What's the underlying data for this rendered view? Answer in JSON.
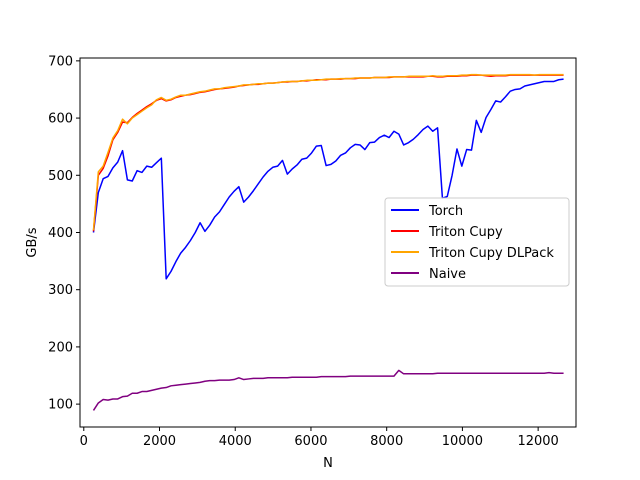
{
  "chart_data": {
    "type": "line",
    "title": "",
    "xlabel": "N",
    "ylabel": "GB/s",
    "xlim": [
      -100,
      13000
    ],
    "ylim": [
      60,
      705
    ],
    "xticks": [
      0,
      2000,
      4000,
      6000,
      8000,
      10000,
      12000
    ],
    "yticks": [
      100,
      200,
      300,
      400,
      500,
      600,
      700
    ],
    "xtick_labels": [
      "0",
      "2000",
      "4000",
      "6000",
      "8000",
      "10000",
      "12000"
    ],
    "ytick_labels": [
      "100",
      "200",
      "300",
      "400",
      "500",
      "600",
      "700"
    ],
    "grid": false,
    "legend_position": "center-right",
    "series": [
      {
        "name": "Torch",
        "color": "#0000ff",
        "x": [
          256,
          384,
          512,
          640,
          768,
          896,
          1024,
          1152,
          1280,
          1408,
          1536,
          1664,
          1792,
          1920,
          2048,
          2176,
          2304,
          2432,
          2560,
          2688,
          2816,
          2944,
          3072,
          3200,
          3328,
          3456,
          3584,
          3712,
          3840,
          3968,
          4096,
          4224,
          4352,
          4480,
          4608,
          4736,
          4864,
          4992,
          5120,
          5248,
          5376,
          5504,
          5632,
          5760,
          5888,
          6016,
          6144,
          6272,
          6400,
          6528,
          6656,
          6784,
          6912,
          7040,
          7168,
          7296,
          7424,
          7552,
          7680,
          7808,
          7936,
          8064,
          8192,
          8320,
          8448,
          8576,
          8704,
          8832,
          8960,
          9088,
          9216,
          9344,
          9472,
          9600,
          9728,
          9856,
          9984,
          10112,
          10240,
          10368,
          10496,
          10624,
          10752,
          10880,
          11008,
          11136,
          11264,
          11392,
          11520,
          11648,
          11776,
          11904,
          12032,
          12160,
          12288,
          12416,
          12544,
          12672
        ],
        "y": [
          400,
          470,
          494,
          498,
          513,
          523,
          543,
          492,
          490,
          508,
          505,
          516,
          514,
          522,
          530,
          319,
          332,
          349,
          364,
          374,
          386,
          400,
          417,
          402,
          413,
          427,
          436,
          449,
          462,
          472,
          480,
          453,
          462,
          473,
          485,
          497,
          507,
          514,
          516,
          526,
          502,
          511,
          518,
          528,
          530,
          539,
          551,
          552,
          517,
          519,
          525,
          535,
          539,
          548,
          554,
          553,
          545,
          557,
          558,
          566,
          570,
          566,
          577,
          572,
          553,
          557,
          563,
          571,
          580,
          586,
          577,
          583,
          460,
          463,
          500,
          546,
          516,
          545,
          544,
          596,
          575,
          601,
          615,
          630,
          628,
          637,
          647,
          650,
          651,
          656,
          658,
          660,
          662,
          664,
          664,
          664,
          667,
          668
        ]
      },
      {
        "name": "Triton Cupy",
        "color": "#ff0000",
        "x": [
          256,
          384,
          512,
          640,
          768,
          896,
          1024,
          1152,
          1280,
          1408,
          1536,
          1664,
          1792,
          1920,
          2048,
          2176,
          2304,
          2432,
          2560,
          2688,
          2816,
          2944,
          3072,
          3200,
          3328,
          3456,
          3584,
          3712,
          3840,
          3968,
          4096,
          4224,
          4352,
          4480,
          4608,
          4736,
          4864,
          4992,
          5120,
          5248,
          5376,
          5504,
          5632,
          5760,
          5888,
          6016,
          6144,
          6272,
          6400,
          6528,
          6656,
          6784,
          6912,
          7040,
          7168,
          7296,
          7424,
          7552,
          7680,
          7808,
          7936,
          8064,
          8192,
          8320,
          8448,
          8576,
          8704,
          8832,
          8960,
          9088,
          9216,
          9344,
          9472,
          9600,
          9728,
          9856,
          9984,
          10112,
          10240,
          10368,
          10496,
          10624,
          10752,
          10880,
          11008,
          11136,
          11264,
          11392,
          11520,
          11648,
          11776,
          11904,
          12032,
          12160,
          12288,
          12416,
          12544,
          12672
        ],
        "y": [
          402,
          500,
          512,
          534,
          562,
          575,
          593,
          592,
          601,
          608,
          614,
          620,
          625,
          631,
          634,
          630,
          632,
          636,
          638,
          640,
          641,
          643,
          645,
          646,
          648,
          650,
          651,
          652,
          653,
          654,
          656,
          657,
          658,
          659,
          659,
          660,
          661,
          661,
          662,
          663,
          663,
          664,
          664,
          665,
          665,
          666,
          667,
          667,
          667,
          668,
          668,
          668,
          669,
          669,
          669,
          670,
          670,
          670,
          671,
          671,
          671,
          671,
          672,
          672,
          672,
          672,
          672,
          672,
          672,
          673,
          673,
          672,
          672,
          673,
          673,
          673,
          674,
          674,
          675,
          675,
          675,
          674,
          673,
          674,
          674,
          674,
          675,
          675,
          675,
          675,
          675,
          675,
          675,
          675,
          675,
          675,
          675,
          675
        ]
      },
      {
        "name": "Triton Cupy DLPack",
        "color": "#ffa500",
        "x": [
          256,
          384,
          512,
          640,
          768,
          896,
          1024,
          1152,
          1280,
          1408,
          1536,
          1664,
          1792,
          1920,
          2048,
          2176,
          2304,
          2432,
          2560,
          2688,
          2816,
          2944,
          3072,
          3200,
          3328,
          3456,
          3584,
          3712,
          3840,
          3968,
          4096,
          4224,
          4352,
          4480,
          4608,
          4736,
          4864,
          4992,
          5120,
          5248,
          5376,
          5504,
          5632,
          5760,
          5888,
          6016,
          6144,
          6272,
          6400,
          6528,
          6656,
          6784,
          6912,
          7040,
          7168,
          7296,
          7424,
          7552,
          7680,
          7808,
          7936,
          8064,
          8192,
          8320,
          8448,
          8576,
          8704,
          8832,
          8960,
          9088,
          9216,
          9344,
          9472,
          9600,
          9728,
          9856,
          9984,
          10112,
          10240,
          10368,
          10496,
          10624,
          10752,
          10880,
          11008,
          11136,
          11264,
          11392,
          11520,
          11648,
          11776,
          11904,
          12032,
          12160,
          12288,
          12416,
          12544,
          12672
        ],
        "y": [
          404,
          506,
          516,
          540,
          565,
          578,
          598,
          590,
          600,
          606,
          612,
          618,
          623,
          632,
          636,
          631,
          633,
          637,
          640,
          640,
          642,
          644,
          646,
          647,
          649,
          651,
          651,
          653,
          654,
          655,
          656,
          658,
          658,
          659,
          660,
          660,
          661,
          661,
          662,
          663,
          664,
          664,
          664,
          665,
          666,
          666,
          666,
          667,
          668,
          668,
          668,
          669,
          669,
          669,
          670,
          670,
          670,
          670,
          671,
          671,
          671,
          672,
          672,
          672,
          672,
          673,
          673,
          673,
          673,
          673,
          674,
          673,
          673,
          674,
          674,
          674,
          675,
          675,
          676,
          676,
          675,
          675,
          675,
          675,
          675,
          675,
          676,
          676,
          676,
          676,
          676,
          675,
          676,
          676,
          676,
          676,
          676,
          676
        ]
      },
      {
        "name": "Naive",
        "color": "#800080",
        "x": [
          256,
          384,
          512,
          640,
          768,
          896,
          1024,
          1152,
          1280,
          1408,
          1536,
          1664,
          1792,
          1920,
          2048,
          2176,
          2304,
          2432,
          2560,
          2688,
          2816,
          2944,
          3072,
          3200,
          3328,
          3456,
          3584,
          3712,
          3840,
          3968,
          4096,
          4224,
          4352,
          4480,
          4608,
          4736,
          4864,
          4992,
          5120,
          5248,
          5376,
          5504,
          5632,
          5760,
          5888,
          6016,
          6144,
          6272,
          6400,
          6528,
          6656,
          6784,
          6912,
          7040,
          7168,
          7296,
          7424,
          7552,
          7680,
          7808,
          7936,
          8064,
          8192,
          8320,
          8448,
          8576,
          8704,
          8832,
          8960,
          9088,
          9216,
          9344,
          9472,
          9600,
          9728,
          9856,
          9984,
          10112,
          10240,
          10368,
          10496,
          10624,
          10752,
          10880,
          11008,
          11136,
          11264,
          11392,
          11520,
          11648,
          11776,
          11904,
          12032,
          12160,
          12288,
          12416,
          12544,
          12672
        ],
        "y": [
          89,
          102,
          108,
          107,
          109,
          109,
          113,
          114,
          119,
          119,
          122,
          122,
          124,
          126,
          128,
          129,
          132,
          133,
          134,
          135,
          136,
          137,
          138,
          140,
          141,
          141,
          142,
          142,
          142,
          143,
          146,
          143,
          144,
          145,
          145,
          145,
          146,
          146,
          146,
          146,
          146,
          147,
          147,
          147,
          147,
          147,
          147,
          148,
          148,
          148,
          148,
          148,
          148,
          149,
          149,
          149,
          149,
          149,
          149,
          149,
          149,
          149,
          149,
          159,
          153,
          153,
          153,
          153,
          153,
          153,
          153,
          154,
          154,
          154,
          154,
          154,
          154,
          154,
          154,
          154,
          154,
          154,
          154,
          154,
          154,
          154,
          154,
          154,
          154,
          154,
          154,
          154,
          154,
          154,
          155,
          154,
          154,
          154
        ]
      }
    ]
  }
}
